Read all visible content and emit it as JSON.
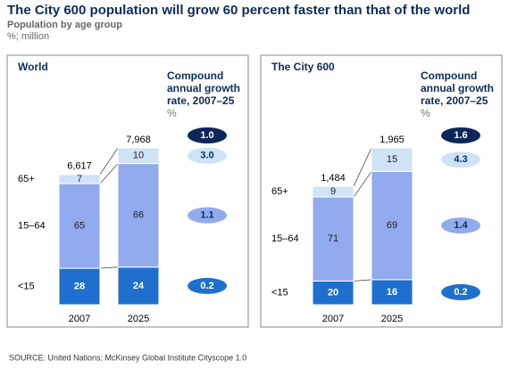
{
  "title": "The City 600 population will grow 60 percent faster than that of the world",
  "subtitle": "Population by age group",
  "units": "%; million",
  "chart_data": [
    {
      "type": "bar",
      "stacked": true,
      "title": "World",
      "categories": [
        "2007",
        "2025"
      ],
      "series": [
        {
          "name": "<15",
          "color": "#1f6fce",
          "values": [
            28,
            24
          ]
        },
        {
          "name": "15–64",
          "color": "#92aaee",
          "values": [
            65,
            66
          ]
        },
        {
          "name": "65+",
          "color": "#cfe3f7",
          "values": [
            7,
            10
          ]
        }
      ],
      "totals": {
        "values": [
          6617,
          7968
        ],
        "value_labels": [
          "6,617",
          "7,968"
        ]
      },
      "growth": {
        "title": "Compound annual growth rate, 2007–25",
        "unit": "%",
        "total": 1,
        "total_label": "1.0",
        "values": [
          0.2,
          1.1,
          3
        ],
        "value_labels": [
          "0.2",
          "1.1",
          "3.0"
        ]
      }
    },
    {
      "type": "bar",
      "stacked": true,
      "title": "The City 600",
      "categories": [
        "2007",
        "2025"
      ],
      "series": [
        {
          "name": "<15",
          "color": "#1f6fce",
          "values": [
            20,
            16
          ]
        },
        {
          "name": "15–64",
          "color": "#92aaee",
          "values": [
            71,
            69
          ]
        },
        {
          "name": "65+",
          "color": "#cfe3f7",
          "values": [
            9,
            15
          ]
        }
      ],
      "totals": {
        "values": [
          1484,
          1965
        ],
        "value_labels": [
          "1,484",
          "1,965"
        ]
      },
      "growth": {
        "title": "Compound annual growth rate, 2007–25",
        "unit": "%",
        "total": 1.6,
        "total_label": "1.6",
        "values": [
          0.2,
          1.4,
          4.3
        ],
        "value_labels": [
          "0.2",
          "1.4",
          "4.3"
        ]
      }
    }
  ],
  "source": "SOURCE: United Nations; McKinsey Global Institute Cityscope 1.0"
}
